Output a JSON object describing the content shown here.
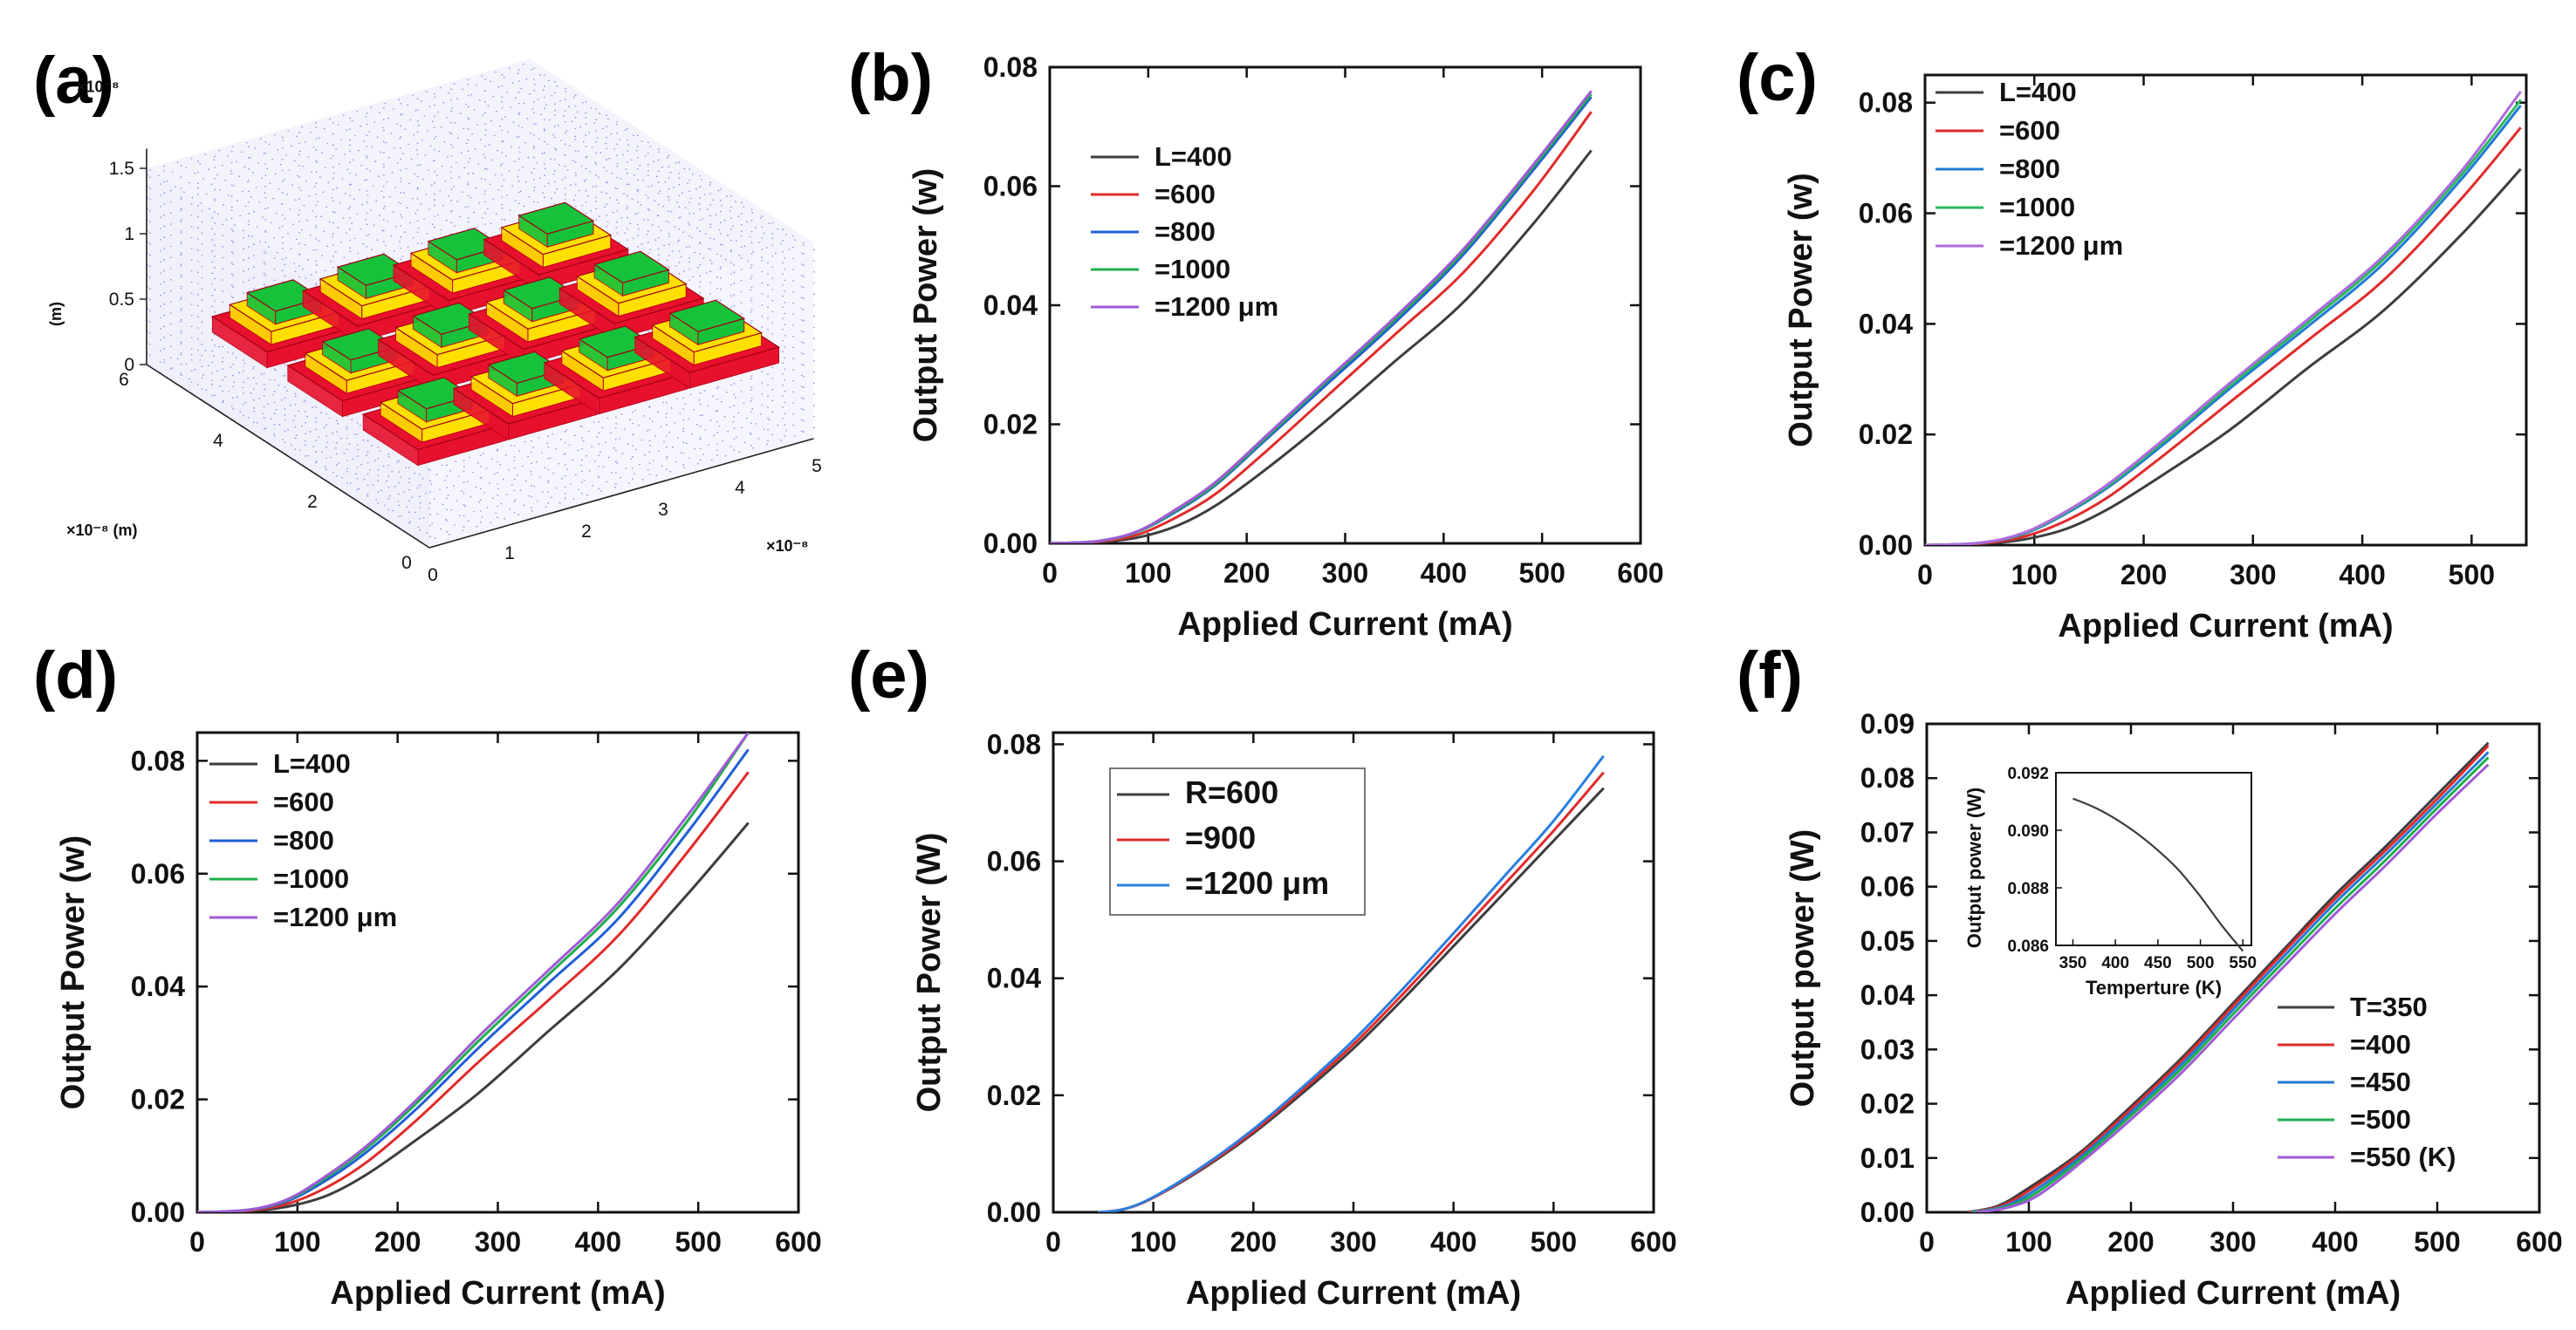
{
  "panel_a": {
    "letter": "(a)",
    "z_exponent": "×10⁻⁸",
    "z_unit": "(m)",
    "y_label": "×10⁻⁸ (m)",
    "x_exponent": "×10⁻⁸",
    "z_ticks": [
      "1.5",
      "1",
      "0.5",
      "0"
    ],
    "y_ticks": [
      "6",
      "4",
      "2",
      "0"
    ],
    "x_ticks": [
      "0",
      "1",
      "2",
      "3",
      "4",
      "5"
    ],
    "colors": {
      "grid": "#3a3ad0",
      "base": "#e8112d",
      "mid": "#ffe000",
      "top": "#16c23a"
    }
  },
  "chart_data": [
    {
      "letter": "(b)",
      "type": "line",
      "xlabel": "Applied Current (mA)",
      "ylabel": "Output Power (w)",
      "xlim": [
        0,
        600
      ],
      "ylim": [
        0,
        0.08
      ],
      "xticks": [
        "0",
        "100",
        "200",
        "300",
        "400",
        "500",
        "600"
      ],
      "yticks": [
        "0.00",
        "0.02",
        "0.04",
        "0.06",
        "0.08"
      ],
      "legend_position": "upper-left",
      "series": [
        {
          "name": "L=400",
          "color": "#3d3d3d",
          "x": [
            0,
            50,
            90,
            130,
            170,
            220,
            280,
            350,
            420,
            490,
            550
          ],
          "y": [
            0,
            0.0002,
            0.001,
            0.003,
            0.0065,
            0.0125,
            0.0205,
            0.0305,
            0.0405,
            0.0535,
            0.066
          ]
        },
        {
          "name": "=600",
          "color": "#e02b2b",
          "x": [
            0,
            50,
            90,
            130,
            170,
            220,
            280,
            350,
            420,
            490,
            550
          ],
          "y": [
            0,
            0.0003,
            0.0015,
            0.0045,
            0.0085,
            0.0155,
            0.0245,
            0.035,
            0.0455,
            0.059,
            0.0725
          ]
        },
        {
          "name": "=800",
          "color": "#1f5fd6",
          "x": [
            0,
            50,
            90,
            130,
            170,
            220,
            280,
            350,
            420,
            490,
            550
          ],
          "y": [
            0,
            0.0004,
            0.002,
            0.0055,
            0.01,
            0.0175,
            0.0265,
            0.037,
            0.0485,
            0.0625,
            0.075
          ]
        },
        {
          "name": "=1000",
          "color": "#1fae4b",
          "x": [
            0,
            50,
            90,
            130,
            170,
            220,
            280,
            350,
            420,
            490,
            550
          ],
          "y": [
            0,
            0.0004,
            0.002,
            0.0057,
            0.0102,
            0.0178,
            0.027,
            0.0375,
            0.049,
            0.063,
            0.0755
          ]
        },
        {
          "name": "=1200 μm",
          "color": "#a05ad6",
          "x": [
            0,
            50,
            90,
            130,
            170,
            220,
            280,
            350,
            420,
            490,
            550
          ],
          "y": [
            0,
            0.0004,
            0.0021,
            0.0059,
            0.0105,
            0.0181,
            0.0273,
            0.0379,
            0.0494,
            0.0634,
            0.076
          ]
        }
      ]
    },
    {
      "letter": "(c)",
      "type": "line",
      "xlabel": "Applied Current (mA)",
      "ylabel": "Output Power (w)",
      "xlim": [
        0,
        550
      ],
      "ylim": [
        0,
        0.085
      ],
      "xticks": [
        "0",
        "100",
        "200",
        "300",
        "400",
        "500"
      ],
      "yticks": [
        "0.00",
        "0.02",
        "0.04",
        "0.06",
        "0.08"
      ],
      "legend_position": "upper-left",
      "series": [
        {
          "name": "L=400",
          "color": "#3d3d3d",
          "x": [
            0,
            50,
            90,
            130,
            170,
            220,
            280,
            350,
            420,
            490,
            545
          ],
          "y": [
            0,
            0.0002,
            0.001,
            0.003,
            0.0068,
            0.013,
            0.021,
            0.032,
            0.0425,
            0.056,
            0.068
          ]
        },
        {
          "name": "=600",
          "color": "#e02b2b",
          "x": [
            0,
            50,
            90,
            130,
            170,
            220,
            280,
            350,
            420,
            490,
            545
          ],
          "y": [
            0,
            0.0003,
            0.0015,
            0.0045,
            0.009,
            0.0165,
            0.026,
            0.037,
            0.048,
            0.0625,
            0.0755
          ]
        },
        {
          "name": "=800",
          "color": "#1f7ad6",
          "x": [
            0,
            50,
            90,
            130,
            170,
            220,
            280,
            350,
            420,
            490,
            545
          ],
          "y": [
            0,
            0.0004,
            0.002,
            0.0058,
            0.0108,
            0.0185,
            0.0285,
            0.0395,
            0.051,
            0.066,
            0.0795
          ]
        },
        {
          "name": "=1000",
          "color": "#2bb85a",
          "x": [
            0,
            50,
            90,
            130,
            170,
            220,
            280,
            350,
            420,
            490,
            545
          ],
          "y": [
            0,
            0.0004,
            0.0021,
            0.006,
            0.0111,
            0.019,
            0.029,
            0.0402,
            0.0518,
            0.0668,
            0.0805
          ]
        },
        {
          "name": "=1200 μm",
          "color": "#b06ae0",
          "x": [
            0,
            50,
            90,
            130,
            170,
            220,
            280,
            350,
            420,
            490,
            545
          ],
          "y": [
            0,
            0.0004,
            0.0022,
            0.0062,
            0.0114,
            0.0194,
            0.0295,
            0.0408,
            0.0524,
            0.0675,
            0.082
          ]
        }
      ]
    },
    {
      "letter": "(d)",
      "type": "line",
      "xlabel": "Applied Current (mA)",
      "ylabel": "Output Power (w)",
      "xlim": [
        0,
        600
      ],
      "ylim": [
        0,
        0.085
      ],
      "xticks": [
        "0",
        "100",
        "200",
        "300",
        "400",
        "500",
        "600"
      ],
      "yticks": [
        "0.00",
        "0.02",
        "0.04",
        "0.06",
        "0.08"
      ],
      "legend_position": "upper-left",
      "series": [
        {
          "name": "L=400",
          "color": "#3d3d3d",
          "x": [
            0,
            50,
            90,
            130,
            170,
            220,
            280,
            350,
            420,
            490,
            550
          ],
          "y": [
            0,
            0.0002,
            0.001,
            0.003,
            0.0068,
            0.013,
            0.021,
            0.032,
            0.043,
            0.0565,
            0.069
          ]
        },
        {
          "name": "=600",
          "color": "#e02b2b",
          "x": [
            0,
            50,
            90,
            130,
            170,
            220,
            280,
            350,
            420,
            490,
            550
          ],
          "y": [
            0,
            0.0003,
            0.0015,
            0.0045,
            0.009,
            0.0165,
            0.0265,
            0.0375,
            0.049,
            0.064,
            0.078
          ]
        },
        {
          "name": "=800",
          "color": "#1f5fd6",
          "x": [
            0,
            50,
            90,
            130,
            170,
            220,
            280,
            350,
            420,
            490,
            550
          ],
          "y": [
            0,
            0.0004,
            0.002,
            0.0058,
            0.0108,
            0.0185,
            0.029,
            0.0405,
            0.052,
            0.0675,
            0.082
          ]
        },
        {
          "name": "=1000",
          "color": "#1fae4b",
          "x": [
            0,
            50,
            90,
            130,
            170,
            220,
            280,
            350,
            420,
            490,
            550
          ],
          "y": [
            0,
            0.0004,
            0.0022,
            0.0063,
            0.0115,
            0.0195,
            0.0302,
            0.042,
            0.054,
            0.0695,
            0.085
          ]
        },
        {
          "name": "=1200 μm",
          "color": "#a05ad6",
          "x": [
            0,
            50,
            90,
            130,
            170,
            220,
            280,
            350,
            420,
            490,
            550
          ],
          "y": [
            0,
            0.0004,
            0.0023,
            0.0066,
            0.0119,
            0.0201,
            0.031,
            0.0428,
            0.0548,
            0.0705,
            0.085
          ]
        }
      ]
    },
    {
      "letter": "(e)",
      "type": "line",
      "xlabel": "Applied Current (mA)",
      "ylabel": "Output Power (W)",
      "xlim": [
        0,
        600
      ],
      "ylim": [
        0,
        0.082
      ],
      "xticks": [
        "0",
        "100",
        "200",
        "300",
        "400",
        "500",
        "600"
      ],
      "yticks": [
        "0.00",
        "0.02",
        "0.04",
        "0.06",
        "0.08"
      ],
      "legend_position": "upper-left",
      "series": [
        {
          "name": "R=600",
          "color": "#3d3d3d",
          "x": [
            45,
            70,
            100,
            150,
            200,
            250,
            300,
            350,
            400,
            450,
            500,
            550
          ],
          "y": [
            0,
            0.0005,
            0.0025,
            0.0075,
            0.0135,
            0.0205,
            0.028,
            0.0365,
            0.0455,
            0.0545,
            0.0635,
            0.0725
          ]
        },
        {
          "name": "=900",
          "color": "#e02b2b",
          "x": [
            45,
            70,
            100,
            150,
            200,
            250,
            300,
            350,
            400,
            450,
            500,
            550
          ],
          "y": [
            0,
            0.0005,
            0.0025,
            0.0077,
            0.0138,
            0.021,
            0.0287,
            0.0374,
            0.0466,
            0.0559,
            0.0652,
            0.0752
          ]
        },
        {
          "name": "=1200 μm",
          "color": "#2b7ee0",
          "x": [
            45,
            70,
            100,
            150,
            200,
            250,
            300,
            350,
            400,
            450,
            500,
            550
          ],
          "y": [
            0,
            0.0005,
            0.0026,
            0.0079,
            0.0142,
            0.0215,
            0.0294,
            0.0383,
            0.0477,
            0.0573,
            0.0669,
            0.078
          ]
        }
      ]
    },
    {
      "letter": "(f)",
      "type": "line",
      "xlabel": "Applied Current (mA)",
      "ylabel": "Output power (W)",
      "xlim": [
        0,
        600
      ],
      "ylim": [
        0,
        0.09
      ],
      "xticks": [
        "0",
        "100",
        "200",
        "300",
        "400",
        "500",
        "600"
      ],
      "yticks": [
        "0.00",
        "0.01",
        "0.02",
        "0.03",
        "0.04",
        "0.05",
        "0.06",
        "0.07",
        "0.08",
        "0.09"
      ],
      "legend_position": "lower-right",
      "series": [
        {
          "name": "T=350",
          "color": "#3d3d3d",
          "x": [
            40,
            70,
            100,
            150,
            200,
            250,
            300,
            350,
            400,
            450,
            500,
            550
          ],
          "y": [
            0,
            0.0012,
            0.0045,
            0.011,
            0.0195,
            0.0285,
            0.0385,
            0.0485,
            0.0585,
            0.0675,
            0.077,
            0.0865
          ]
        },
        {
          "name": "=400",
          "color": "#e02b2b",
          "x": [
            42,
            72,
            102,
            150,
            200,
            250,
            300,
            350,
            400,
            450,
            500,
            550
          ],
          "y": [
            0,
            0.0011,
            0.0042,
            0.0106,
            0.019,
            0.028,
            0.038,
            0.048,
            0.0578,
            0.0668,
            0.0762,
            0.086
          ]
        },
        {
          "name": "=450",
          "color": "#1f7ad6",
          "x": [
            44,
            74,
            104,
            150,
            200,
            250,
            300,
            350,
            400,
            450,
            500,
            550
          ],
          "y": [
            0,
            0.001,
            0.0038,
            0.0101,
            0.0184,
            0.0273,
            0.0373,
            0.0472,
            0.057,
            0.066,
            0.0754,
            0.0848
          ]
        },
        {
          "name": "=500",
          "color": "#1fae4b",
          "x": [
            46,
            76,
            106,
            150,
            200,
            250,
            300,
            350,
            400,
            450,
            500,
            550
          ],
          "y": [
            0,
            0.0009,
            0.0034,
            0.0096,
            0.0178,
            0.0266,
            0.0365,
            0.0463,
            0.056,
            0.065,
            0.0745,
            0.0838
          ]
        },
        {
          "name": "=550 (K)",
          "color": "#a05ad6",
          "x": [
            48,
            78,
            108,
            150,
            200,
            250,
            300,
            350,
            400,
            450,
            500,
            550
          ],
          "y": [
            0,
            0.0008,
            0.003,
            0.009,
            0.0171,
            0.0258,
            0.0356,
            0.0453,
            0.055,
            0.064,
            0.0735,
            0.0825
          ]
        }
      ],
      "inset": {
        "type": "line",
        "xlabel": "Temperture (K)",
        "ylabel": "Output power (W)",
        "xlim": [
          330,
          560
        ],
        "ylim": [
          0.086,
          0.092
        ],
        "xticks": [
          "350",
          "400",
          "450",
          "500",
          "550"
        ],
        "yticks": [
          "0.086",
          "0.088",
          "0.090",
          "0.092"
        ],
        "x": [
          350,
          375,
          400,
          425,
          450,
          475,
          500,
          525,
          550
        ],
        "y": [
          0.0911,
          0.0908,
          0.0904,
          0.0899,
          0.0893,
          0.0886,
          0.0877,
          0.0867,
          0.0858
        ],
        "color": "#3d3d3d"
      }
    }
  ]
}
